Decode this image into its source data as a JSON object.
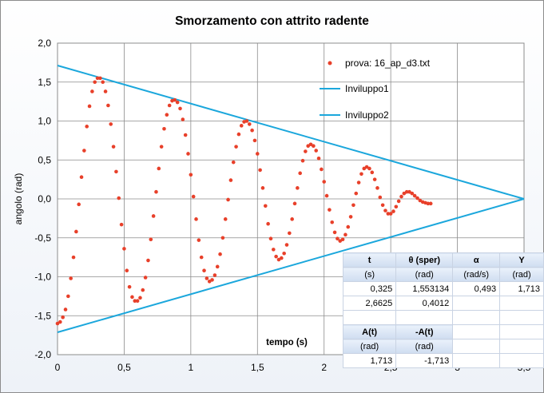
{
  "chart_data": {
    "type": "scatter",
    "title": "Smorzamento  con attrito radente",
    "xlabel": "tempo (s)",
    "ylabel": "angolo (rad)",
    "xlim": [
      0,
      3.5
    ],
    "ylim": [
      -2.0,
      2.0
    ],
    "x_ticks": [
      "0",
      "0,5",
      "1",
      "1,5",
      "2",
      "2,5",
      "3",
      "3,5"
    ],
    "y_ticks": [
      "2,0",
      "1,5",
      "1,0",
      "0,5",
      "0,0",
      "-0,5",
      "-1,0",
      "-1,5",
      "-2,0"
    ],
    "grid": true,
    "legend_position": "top-right",
    "series": [
      {
        "name": "prova: 16_ap_d3.txt",
        "kind": "points",
        "color": "#e8402a",
        "points": [
          [
            0.0,
            -1.6
          ],
          [
            0.02,
            -1.58
          ],
          [
            0.04,
            -1.52
          ],
          [
            0.06,
            -1.42
          ],
          [
            0.08,
            -1.25
          ],
          [
            0.1,
            -1.02
          ],
          [
            0.12,
            -0.75
          ],
          [
            0.14,
            -0.42
          ],
          [
            0.16,
            -0.07
          ],
          [
            0.18,
            0.28
          ],
          [
            0.2,
            0.62
          ],
          [
            0.22,
            0.93
          ],
          [
            0.24,
            1.19
          ],
          [
            0.26,
            1.38
          ],
          [
            0.28,
            1.5
          ],
          [
            0.3,
            1.55
          ],
          [
            0.32,
            1.55
          ],
          [
            0.34,
            1.5
          ],
          [
            0.36,
            1.38
          ],
          [
            0.38,
            1.2
          ],
          [
            0.4,
            0.96
          ],
          [
            0.42,
            0.67
          ],
          [
            0.44,
            0.35
          ],
          [
            0.46,
            0.01
          ],
          [
            0.48,
            -0.33
          ],
          [
            0.5,
            -0.64
          ],
          [
            0.52,
            -0.92
          ],
          [
            0.54,
            -1.13
          ],
          [
            0.56,
            -1.26
          ],
          [
            0.58,
            -1.31
          ],
          [
            0.6,
            -1.31
          ],
          [
            0.62,
            -1.27
          ],
          [
            0.64,
            -1.17
          ],
          [
            0.66,
            -1.01
          ],
          [
            0.68,
            -0.79
          ],
          [
            0.7,
            -0.52
          ],
          [
            0.72,
            -0.22
          ],
          [
            0.74,
            0.09
          ],
          [
            0.76,
            0.39
          ],
          [
            0.78,
            0.67
          ],
          [
            0.8,
            0.9
          ],
          [
            0.82,
            1.08
          ],
          [
            0.84,
            1.2
          ],
          [
            0.86,
            1.26
          ],
          [
            0.88,
            1.27
          ],
          [
            0.9,
            1.24
          ],
          [
            0.92,
            1.16
          ],
          [
            0.94,
            1.02
          ],
          [
            0.96,
            0.82
          ],
          [
            0.98,
            0.58
          ],
          [
            1.0,
            0.31
          ],
          [
            1.02,
            0.03
          ],
          [
            1.04,
            -0.26
          ],
          [
            1.06,
            -0.53
          ],
          [
            1.08,
            -0.75
          ],
          [
            1.1,
            -0.92
          ],
          [
            1.12,
            -1.02
          ],
          [
            1.14,
            -1.06
          ],
          [
            1.16,
            -1.04
          ],
          [
            1.18,
            -0.98
          ],
          [
            1.2,
            -0.87
          ],
          [
            1.22,
            -0.71
          ],
          [
            1.24,
            -0.5
          ],
          [
            1.26,
            -0.26
          ],
          [
            1.28,
            -0.01
          ],
          [
            1.3,
            0.24
          ],
          [
            1.32,
            0.47
          ],
          [
            1.34,
            0.67
          ],
          [
            1.36,
            0.83
          ],
          [
            1.38,
            0.94
          ],
          [
            1.4,
            0.99
          ],
          [
            1.42,
            1.0
          ],
          [
            1.44,
            0.96
          ],
          [
            1.46,
            0.88
          ],
          [
            1.48,
            0.75
          ],
          [
            1.5,
            0.58
          ],
          [
            1.52,
            0.37
          ],
          [
            1.54,
            0.14
          ],
          [
            1.56,
            -0.09
          ],
          [
            1.58,
            -0.32
          ],
          [
            1.6,
            -0.51
          ],
          [
            1.62,
            -0.65
          ],
          [
            1.64,
            -0.74
          ],
          [
            1.66,
            -0.78
          ],
          [
            1.68,
            -0.76
          ],
          [
            1.7,
            -0.7
          ],
          [
            1.72,
            -0.59
          ],
          [
            1.74,
            -0.44
          ],
          [
            1.76,
            -0.26
          ],
          [
            1.78,
            -0.06
          ],
          [
            1.8,
            0.14
          ],
          [
            1.82,
            0.33
          ],
          [
            1.84,
            0.49
          ],
          [
            1.86,
            0.61
          ],
          [
            1.88,
            0.68
          ],
          [
            1.9,
            0.7
          ],
          [
            1.92,
            0.68
          ],
          [
            1.94,
            0.62
          ],
          [
            1.96,
            0.52
          ],
          [
            1.98,
            0.38
          ],
          [
            2.0,
            0.22
          ],
          [
            2.02,
            0.04
          ],
          [
            2.04,
            -0.14
          ],
          [
            2.06,
            -0.3
          ],
          [
            2.08,
            -0.43
          ],
          [
            2.1,
            -0.51
          ],
          [
            2.12,
            -0.54
          ],
          [
            2.14,
            -0.52
          ],
          [
            2.16,
            -0.46
          ],
          [
            2.18,
            -0.36
          ],
          [
            2.2,
            -0.23
          ],
          [
            2.22,
            -0.08
          ],
          [
            2.24,
            0.07
          ],
          [
            2.26,
            0.21
          ],
          [
            2.28,
            0.32
          ],
          [
            2.3,
            0.39
          ],
          [
            2.32,
            0.41
          ],
          [
            2.34,
            0.39
          ],
          [
            2.36,
            0.34
          ],
          [
            2.38,
            0.25
          ],
          [
            2.4,
            0.14
          ],
          [
            2.42,
            0.02
          ],
          [
            2.44,
            -0.08
          ],
          [
            2.46,
            -0.15
          ],
          [
            2.48,
            -0.19
          ],
          [
            2.5,
            -0.19
          ],
          [
            2.52,
            -0.16
          ],
          [
            2.54,
            -0.1
          ],
          [
            2.56,
            -0.03
          ],
          [
            2.58,
            0.03
          ],
          [
            2.6,
            0.07
          ],
          [
            2.62,
            0.09
          ],
          [
            2.64,
            0.09
          ],
          [
            2.66,
            0.07
          ],
          [
            2.68,
            0.04
          ],
          [
            2.7,
            0.01
          ],
          [
            2.72,
            -0.02
          ],
          [
            2.74,
            -0.04
          ],
          [
            2.76,
            -0.05
          ],
          [
            2.78,
            -0.06
          ],
          [
            2.8,
            -0.06
          ]
        ]
      },
      {
        "name": "Inviluppo1",
        "kind": "line",
        "color": "#1ba7dc",
        "points": [
          [
            0,
            1.713
          ],
          [
            3.5,
            0.0
          ]
        ]
      },
      {
        "name": "Inviluppo2",
        "kind": "line",
        "color": "#1ba7dc",
        "points": [
          [
            0,
            -1.713
          ],
          [
            3.5,
            0.0
          ]
        ]
      }
    ]
  },
  "table": {
    "header1": [
      "t",
      "θ (sper)",
      "α",
      "Y"
    ],
    "units1": [
      "(s)",
      "(rad)",
      "(rad/s)",
      "(rad)"
    ],
    "row1": [
      "0,325",
      "1,553134",
      "0,493",
      "1,713"
    ],
    "row2": [
      "2,6625",
      "0,4012",
      "",
      ""
    ],
    "header2": [
      "A(t)",
      "-A(t)"
    ],
    "units2": [
      "(rad)",
      "(rad)"
    ],
    "row3": [
      "1,713",
      "-1,713"
    ]
  }
}
